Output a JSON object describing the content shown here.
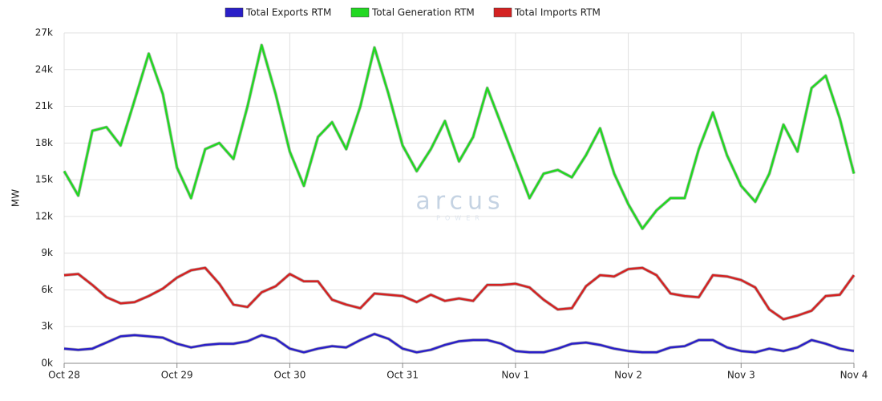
{
  "chart_data": {
    "type": "line",
    "y_label": "MW",
    "watermark": "arcus",
    "watermark_sub": "POWER",
    "categories": [
      "Oct 28",
      null,
      null,
      null,
      null,
      null,
      null,
      null,
      "Oct 29",
      null,
      null,
      null,
      null,
      null,
      null,
      null,
      "Oct 30",
      null,
      null,
      null,
      null,
      null,
      null,
      null,
      "Oct 31",
      null,
      null,
      null,
      null,
      null,
      null,
      null,
      "Nov 1",
      null,
      null,
      null,
      null,
      null,
      null,
      null,
      "Nov 2",
      null,
      null,
      null,
      null,
      null,
      null,
      null,
      "Nov 3",
      null,
      null,
      null,
      null,
      null,
      null,
      null,
      "Nov 4"
    ],
    "series": [
      {
        "name": "Total Exports RTM",
        "color": "#2a1fc8",
        "values": [
          1200,
          1100,
          1200,
          1700,
          2200,
          2300,
          2200,
          2100,
          1600,
          1300,
          1500,
          1600,
          1600,
          1800,
          2300,
          2000,
          1200,
          900,
          1200,
          1400,
          1300,
          1900,
          2400,
          2000,
          1200,
          900,
          1100,
          1500,
          1800,
          1900,
          1900,
          1600,
          1000,
          900,
          900,
          1200,
          1600,
          1700,
          1500,
          1200,
          1000,
          900,
          900,
          1300,
          1400,
          1900,
          1900,
          1300,
          1000,
          900,
          1200,
          1000,
          1300,
          1900,
          1600,
          1200,
          1000
        ]
      },
      {
        "name": "Total Generation RTM",
        "color": "#22d822",
        "values": [
          15700,
          13700,
          19000,
          19300,
          17800,
          21500,
          25300,
          22000,
          16000,
          13500,
          17500,
          18000,
          16700,
          21000,
          26000,
          22000,
          17300,
          14500,
          18500,
          19700,
          17500,
          21000,
          25800,
          22000,
          17800,
          15700,
          17500,
          19800,
          16500,
          18500,
          22500,
          19500,
          16500,
          13500,
          15500,
          15800,
          15200,
          17000,
          19200,
          15500,
          13000,
          11000,
          12500,
          13500,
          13500,
          17500,
          20500,
          17000,
          14500,
          13200,
          15500,
          19500,
          17300,
          22500,
          23500,
          20000,
          15500
        ]
      },
      {
        "name": "Total Imports RTM",
        "color": "#d42222",
        "values": [
          7200,
          7300,
          6400,
          5400,
          4900,
          5000,
          5500,
          6100,
          7000,
          7600,
          7800,
          6500,
          4800,
          4600,
          5800,
          6300,
          7300,
          6700,
          6700,
          5200,
          4800,
          4500,
          5700,
          5600,
          5500,
          5000,
          5600,
          5100,
          5300,
          5100,
          6400,
          6400,
          6500,
          6200,
          5200,
          4400,
          4500,
          6300,
          7200,
          7100,
          7700,
          7800,
          7200,
          5700,
          5500,
          5400,
          7200,
          7100,
          6800,
          6200,
          4400,
          3600,
          3900,
          4300,
          5500,
          5600,
          7200
        ]
      }
    ],
    "ylim": [
      0,
      27000
    ],
    "yticks": [
      {
        "value": 0,
        "label": "0k"
      },
      {
        "value": 3000,
        "label": "3k"
      },
      {
        "value": 6000,
        "label": "6k"
      },
      {
        "value": 9000,
        "label": "9k"
      },
      {
        "value": 12000,
        "label": "12k"
      },
      {
        "value": 15000,
        "label": "15k"
      },
      {
        "value": 18000,
        "label": "18k"
      },
      {
        "value": 21000,
        "label": "21k"
      },
      {
        "value": 24000,
        "label": "24k"
      },
      {
        "value": 27000,
        "label": "27k"
      }
    ],
    "grid": true
  }
}
